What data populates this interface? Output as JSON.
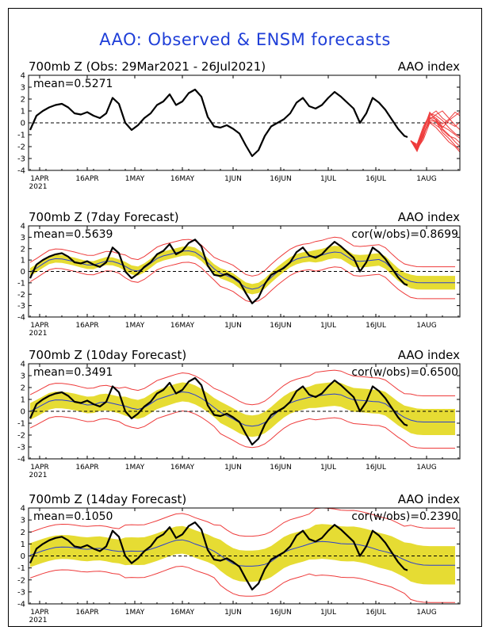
{
  "title": "AAO: Observed & ENSM forecasts",
  "chart_data": [
    {
      "type": "line",
      "title_left": "700mb Z (Obs: 29Mar2021 - 26Jul2021)",
      "title_right": "AAO index",
      "mean_label": "mean=0.5271",
      "cor_label": "",
      "ylim": [
        -4,
        4
      ],
      "y_ticks": [
        "-4",
        "-3",
        "-2",
        "-1",
        "0",
        "1",
        "2",
        "3",
        "4"
      ],
      "x_tick_labels": [
        "1APR",
        "16APR",
        "1MAY",
        "16MAY",
        "1JUN",
        "16JUN",
        "1JUL",
        "16JUL",
        "1AUG"
      ],
      "x_year_label": "2021",
      "series": [
        {
          "kind": "observed",
          "x": [
            0,
            2,
            4,
            6,
            8,
            10,
            12,
            14,
            16,
            18,
            20,
            22,
            24,
            26,
            28,
            30,
            32,
            34,
            36,
            38,
            40,
            42,
            44,
            46,
            48,
            50,
            52,
            54,
            56,
            58,
            60,
            62,
            64,
            66,
            68,
            70,
            72,
            74,
            76,
            78,
            80,
            82,
            84,
            86,
            88,
            90,
            92,
            94,
            96,
            98,
            100,
            102,
            104,
            106,
            108,
            110,
            112,
            114,
            116,
            118,
            119
          ],
          "values": [
            -0.6,
            0.6,
            1.0,
            1.3,
            1.5,
            1.6,
            1.3,
            0.8,
            0.7,
            0.9,
            0.6,
            0.4,
            0.8,
            2.1,
            1.6,
            0.0,
            -0.6,
            -0.2,
            0.4,
            0.8,
            1.5,
            1.8,
            2.4,
            1.5,
            1.8,
            2.5,
            2.8,
            2.2,
            0.5,
            -0.3,
            -0.4,
            -0.2,
            -0.5,
            -0.9,
            -1.9,
            -2.8,
            -2.3,
            -1.1,
            -0.3,
            0.0,
            0.3,
            0.8,
            1.7,
            2.1,
            1.4,
            1.2,
            1.5,
            2.1,
            2.6,
            2.2,
            1.7,
            1.2,
            0.0,
            0.8,
            2.1,
            1.7,
            1.1,
            0.3,
            -0.5,
            -1.1,
            -1.2
          ]
        }
      ],
      "ensemble_forecast": {
        "x_start": 120,
        "x_end": 138,
        "members": [
          [
            -1.5,
            -2.1,
            -0.9,
            0.2,
            0.1,
            -0.5,
            -1.0,
            -1.6,
            -2.1,
            -2.4
          ],
          [
            -1.5,
            -2.3,
            -1.2,
            0.5,
            0.3,
            -0.3,
            -0.6,
            -1.0,
            -1.4,
            -1.8
          ],
          [
            -1.5,
            -1.9,
            -0.5,
            0.8,
            0.6,
            0.2,
            -0.4,
            -0.9,
            -1.2,
            -1.5
          ],
          [
            -1.5,
            -2.2,
            -1.4,
            0.0,
            -0.4,
            -1.0,
            -1.6,
            -2.0,
            -2.6,
            -3.0
          ],
          [
            -1.5,
            -2.0,
            -0.7,
            0.6,
            1.0,
            0.4,
            0.0,
            -0.3,
            0.2,
            0.6
          ],
          [
            -1.5,
            -2.4,
            -1.1,
            0.4,
            0.1,
            -0.8,
            -1.3,
            -1.9,
            -2.4,
            -2.9
          ],
          [
            -1.5,
            -1.8,
            -0.3,
            0.7,
            0.4,
            -0.1,
            0.3,
            0.9,
            0.5,
            0.1
          ],
          [
            -1.5,
            -2.1,
            -0.9,
            0.3,
            0.7,
            1.0,
            0.4,
            -0.2,
            -0.7,
            -1.1
          ],
          [
            -1.5,
            -2.2,
            -1.0,
            0.1,
            -0.2,
            -0.6,
            -1.1,
            -1.3,
            -1.8,
            -2.0
          ],
          [
            -1.5,
            -2.0,
            -0.6,
            0.9,
            0.2,
            -0.4,
            0.2,
            0.6,
            1.0,
            0.8
          ]
        ]
      },
      "colors": {
        "observed": "#000000",
        "members": "#ee3b3b"
      }
    },
    {
      "type": "line",
      "title_left": "700mb Z (7day Forecast)",
      "title_right": "AAO index",
      "mean_label": "mean=0.5639",
      "cor_label": "cor(w/obs)=0.8699",
      "ylim": [
        -4,
        4
      ],
      "y_ticks": [
        "-4",
        "-3",
        "-2",
        "-1",
        "0",
        "1",
        "2",
        "3",
        "4"
      ],
      "x_tick_labels": [
        "1APR",
        "16APR",
        "1MAY",
        "16MAY",
        "1JUN",
        "16JUN",
        "1JUL",
        "16JUL",
        "1AUG"
      ],
      "x_year_label": "2021",
      "forecast": {
        "x_start": 0,
        "x_step": 2,
        "lead_days": 7,
        "band_width": [
          0.35,
          0.4,
          0.45,
          0.55,
          0.6
        ],
        "outer_width": [
          0.85,
          1.0,
          1.15,
          1.3,
          1.4
        ]
      },
      "colors": {
        "observed": "#000000",
        "ensemble_mean": "#2a3fd0",
        "spread": "#e6dc33",
        "bounds": "#ee3b3b"
      }
    },
    {
      "type": "line",
      "title_left": "700mb Z (10day Forecast)",
      "title_right": "AAO index",
      "mean_label": "mean=0.3491",
      "cor_label": "cor(w/obs)=0.6500",
      "ylim": [
        -4,
        4
      ],
      "y_ticks": [
        "-4",
        "-3",
        "-2",
        "-1",
        "0",
        "1",
        "2",
        "3",
        "4"
      ],
      "x_tick_labels": [
        "1APR",
        "16APR",
        "1MAY",
        "16MAY",
        "1JUN",
        "16JUN",
        "1JUL",
        "16JUL",
        "1AUG"
      ],
      "x_year_label": "2021",
      "forecast": {
        "x_start": 0,
        "x_step": 2,
        "lead_days": 10,
        "band_width": [
          0.7,
          0.8,
          0.9,
          1.0,
          1.1
        ],
        "outer_width": [
          1.4,
          1.6,
          1.8,
          2.0,
          2.2
        ]
      },
      "colors": {
        "observed": "#000000",
        "ensemble_mean": "#2a3fd0",
        "spread": "#e6dc33",
        "bounds": "#ee3b3b"
      }
    },
    {
      "type": "line",
      "title_left": "700mb Z (14day Forecast)",
      "title_right": "AAO index",
      "mean_label": "mean=0.1050",
      "cor_label": "cor(w/obs)=0.2390",
      "ylim": [
        -4,
        4
      ],
      "y_ticks": [
        "-4",
        "-3",
        "-2",
        "-1",
        "0",
        "1",
        "2",
        "3",
        "4"
      ],
      "x_tick_labels": [
        "1APR",
        "16APR",
        "1MAY",
        "16MAY",
        "1JUN",
        "16JUN",
        "1JUL",
        "16JUL",
        "1AUG"
      ],
      "x_year_label": "2021",
      "forecast": {
        "x_start": 0,
        "x_step": 2,
        "lead_days": 14,
        "band_width": [
          1.0,
          1.15,
          1.3,
          1.45,
          1.6
        ],
        "outer_width": [
          1.9,
          2.2,
          2.5,
          2.8,
          3.1
        ]
      },
      "colors": {
        "observed": "#000000",
        "ensemble_mean": "#2a3fd0",
        "spread": "#e6dc33",
        "bounds": "#ee3b3b"
      }
    }
  ]
}
